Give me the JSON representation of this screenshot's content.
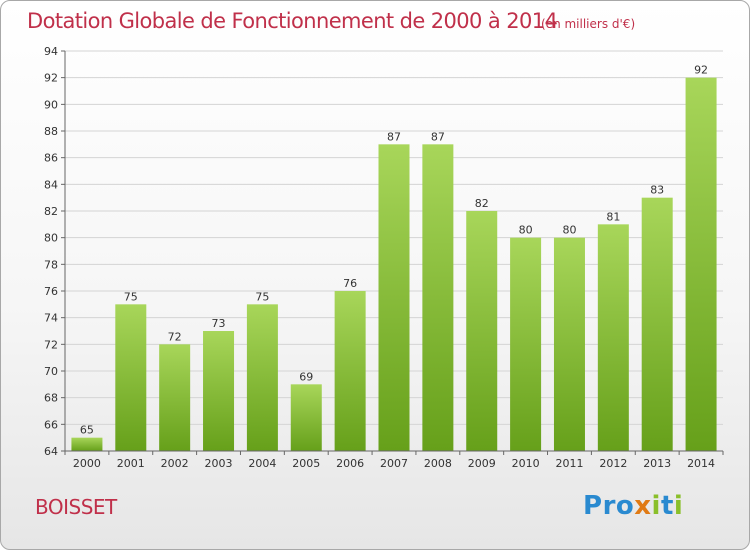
{
  "header": {
    "title": "Dotation Globale de Fonctionnement de 2000 à 2014",
    "subtitle": "(en milliers d'€)"
  },
  "footer": {
    "commune": "BOISSET",
    "logo_text": "Proxiti",
    "logo_letters": [
      {
        "ch": "P",
        "color": "#2a8ad0"
      },
      {
        "ch": "r",
        "color": "#2a8ad0"
      },
      {
        "ch": "o",
        "color": "#2a8ad0"
      },
      {
        "ch": "x",
        "color": "#e07a14"
      },
      {
        "ch": "i",
        "color": "#8abf2a"
      },
      {
        "ch": "t",
        "color": "#2a8ad0"
      },
      {
        "ch": "i",
        "color": "#8abf2a"
      }
    ]
  },
  "chart_data": {
    "type": "bar",
    "categories": [
      "2000",
      "2001",
      "2002",
      "2003",
      "2004",
      "2005",
      "2006",
      "2007",
      "2008",
      "2009",
      "2010",
      "2011",
      "2012",
      "2013",
      "2014"
    ],
    "values": [
      65,
      75,
      72,
      73,
      75,
      69,
      76,
      87,
      87,
      82,
      80,
      80,
      81,
      83,
      92
    ],
    "ylim": [
      64,
      94
    ],
    "yticks": [
      64,
      66,
      68,
      70,
      72,
      74,
      76,
      78,
      80,
      82,
      84,
      86,
      88,
      90,
      92,
      94
    ],
    "grid": true,
    "data_labels": true,
    "colors": {
      "bar_top": "#a8d65a",
      "bar_bottom": "#66a01a",
      "grid": "#d4d4d4",
      "text": "#333333"
    }
  }
}
